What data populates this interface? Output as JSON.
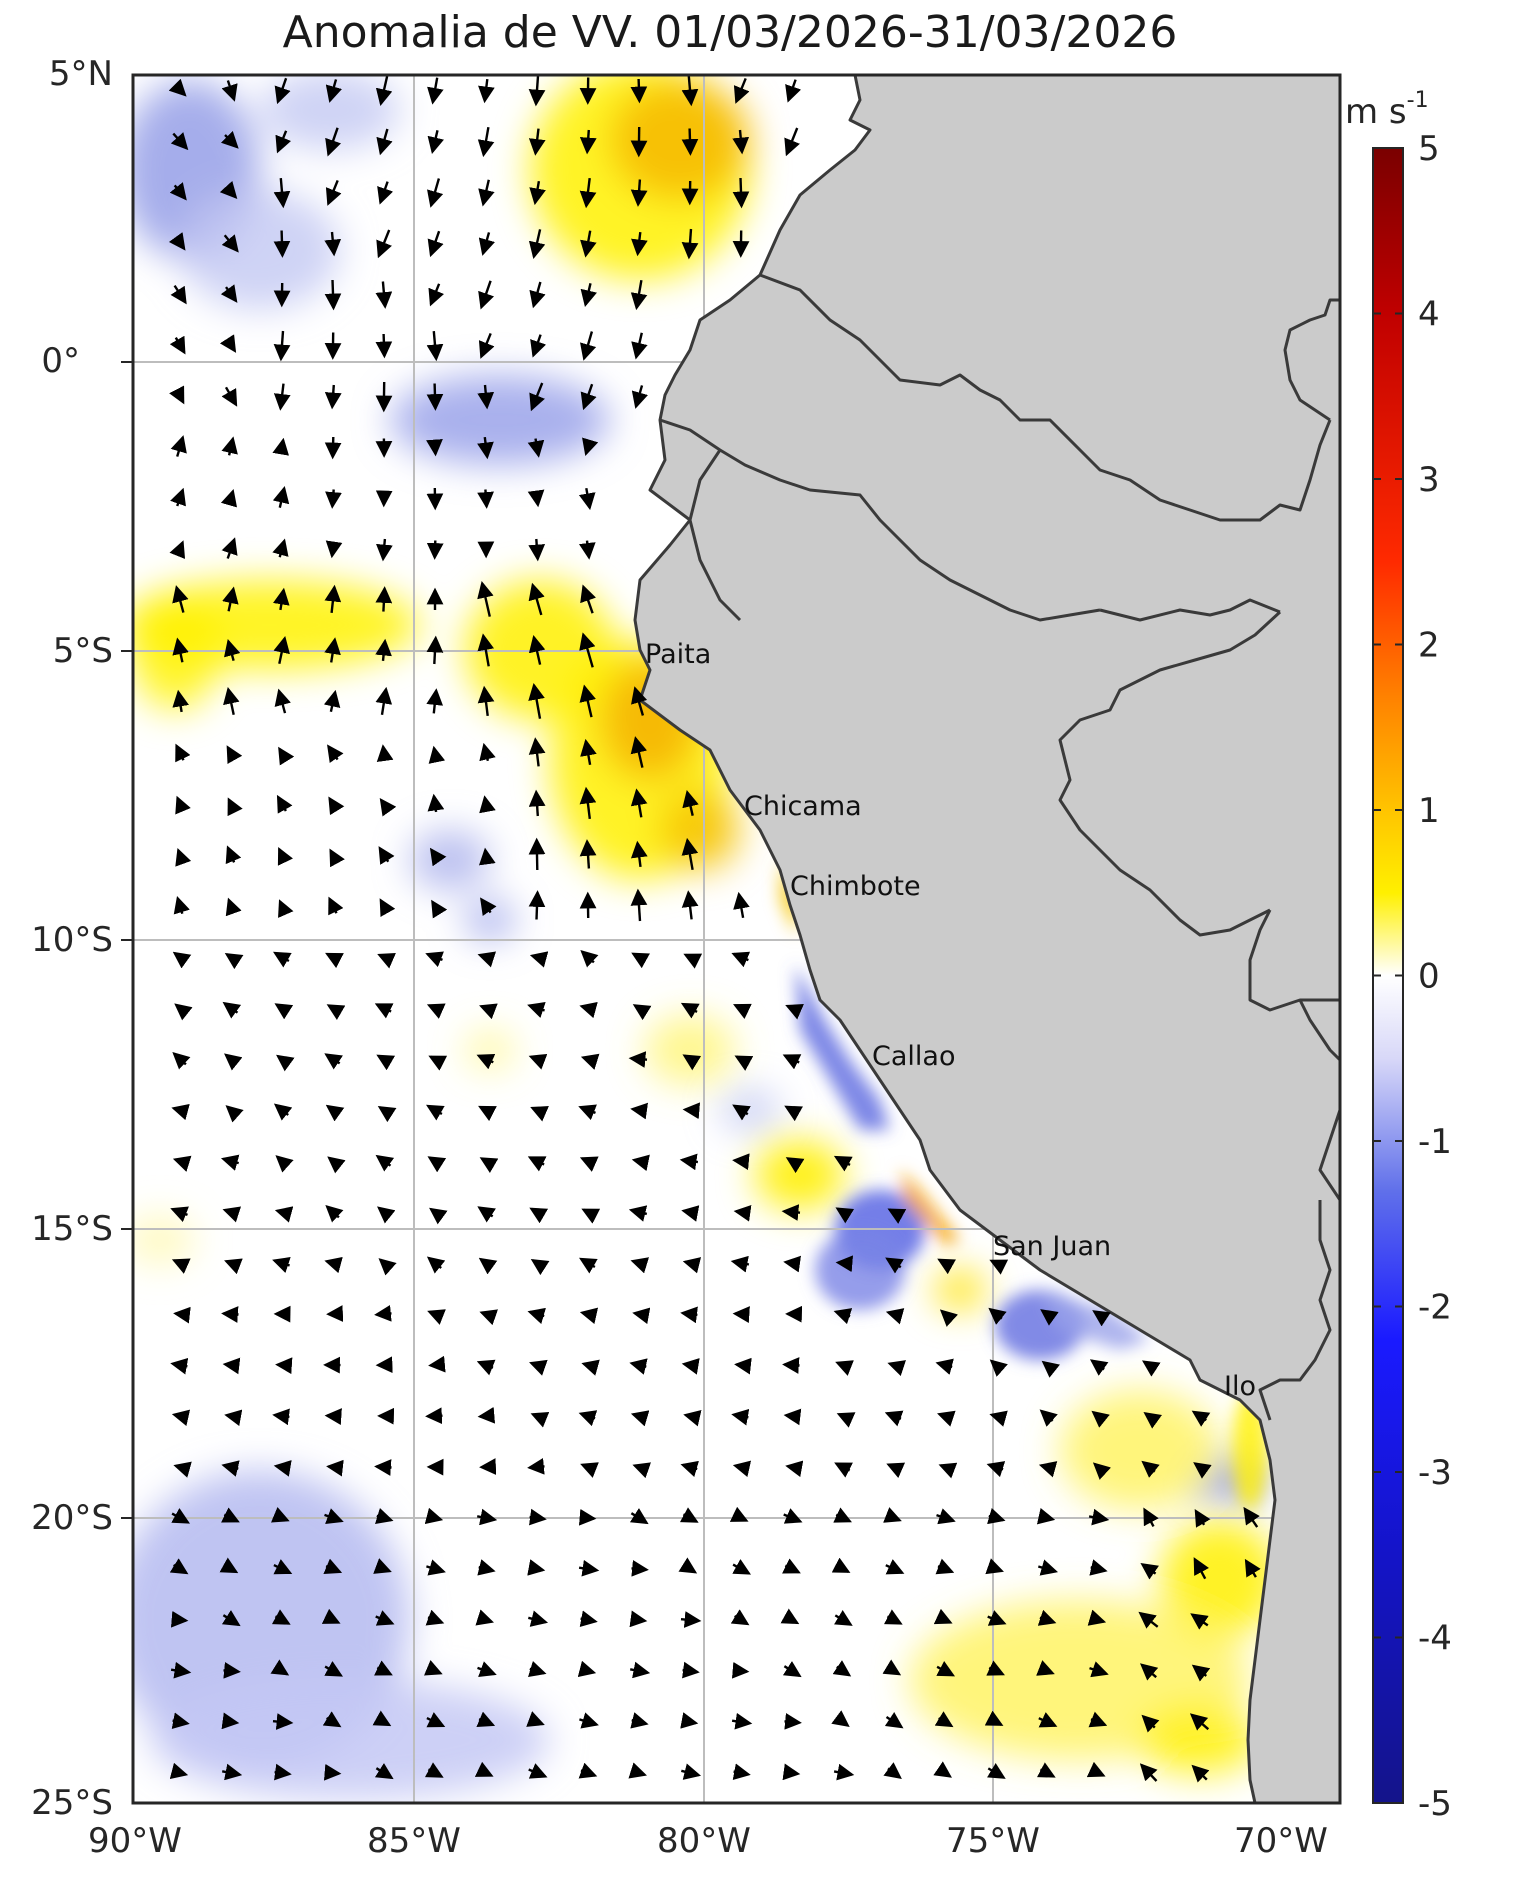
{
  "title": "Anomalia de VV. 01/03/2026-31/03/2026",
  "lon_labels": [
    "90°W",
    "85°W",
    "80°W",
    "75°W",
    "70°W"
  ],
  "lat_labels": [
    "5°N",
    "0°",
    "5°S",
    "10°S",
    "15°S",
    "20°S",
    "25°S"
  ],
  "colorbar": {
    "unit_main": "m s",
    "unit_exp": "-1",
    "tick_labels": [
      "5",
      "4",
      "3",
      "2",
      "1",
      "0",
      "-1",
      "-2",
      "-3",
      "-4",
      "-5"
    ],
    "range": [
      -5,
      5
    ]
  },
  "cities": [
    {
      "name": "Paita",
      "lon": -81.1,
      "lat": -5.1
    },
    {
      "name": "Chicama",
      "lon": -79.4,
      "lat": -7.8
    },
    {
      "name": "Chimbote",
      "lon": -78.6,
      "lat": -9.1
    },
    {
      "name": "Callao",
      "lon": -77.2,
      "lat": -12.0
    },
    {
      "name": "San Juan",
      "lon": -75.0,
      "lat": -15.3
    },
    {
      "name": "Ilo",
      "lon": -71.0,
      "lat": -17.6
    }
  ],
  "colors": {
    "land": "#cbcbcb",
    "coast": "#3a3a3a",
    "grid": "#bdbdbd",
    "positive": "#f2c300",
    "negative": "#4858d8"
  }
}
